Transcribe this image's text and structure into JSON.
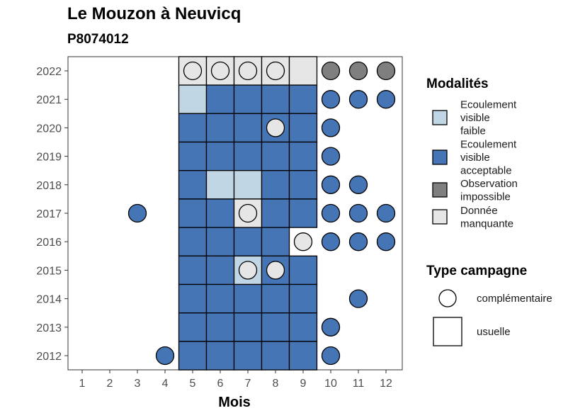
{
  "title": "Le Mouzon à Neuvicq",
  "subtitle": "P8074012",
  "chart_data": {
    "type": "heatmap",
    "xlabel": "Mois",
    "ylabel": "",
    "x_ticks": [
      "1",
      "2",
      "3",
      "4",
      "5",
      "6",
      "7",
      "8",
      "9",
      "10",
      "11",
      "12"
    ],
    "y_ticks": [
      "2012",
      "2013",
      "2014",
      "2015",
      "2016",
      "2017",
      "2018",
      "2019",
      "2020",
      "2021",
      "2022"
    ],
    "grid": false,
    "legend_position": "right",
    "colors": {
      "Ecoulement visible faible": "#c0d6e4",
      "Ecoulement visible acceptable": "#4575b4",
      "Observation impossible": "#7f7f7f",
      "Donnée manquante": "#e6e6e6"
    },
    "legends": [
      {
        "title": "Modalités",
        "items": [
          {
            "lines": [
              "Ecoulement",
              "visible",
              "faible"
            ],
            "color": "#c0d6e4"
          },
          {
            "lines": [
              "Ecoulement",
              "visible",
              "acceptable"
            ],
            "color": "#4575b4"
          },
          {
            "lines": [
              "Observation",
              "impossible"
            ],
            "color": "#7f7f7f"
          },
          {
            "lines": [
              "Donnée",
              "manquante"
            ],
            "color": "#e6e6e6"
          }
        ]
      },
      {
        "title": "Type campagne",
        "items": [
          {
            "label": "complémentaire",
            "shape": "circle"
          },
          {
            "label": "usuelle",
            "shape": "square"
          }
        ]
      }
    ],
    "points": [
      {
        "year": 2022,
        "month": 5,
        "modalite": "Donnée manquante",
        "campagne": "usuelle"
      },
      {
        "year": 2022,
        "month": 6,
        "modalite": "Donnée manquante",
        "campagne": "usuelle"
      },
      {
        "year": 2022,
        "month": 7,
        "modalite": "Donnée manquante",
        "campagne": "usuelle"
      },
      {
        "year": 2022,
        "month": 8,
        "modalite": "Donnée manquante",
        "campagne": "usuelle"
      },
      {
        "year": 2022,
        "month": 9,
        "modalite": "Donnée manquante",
        "campagne": "usuelle"
      },
      {
        "year": 2022,
        "month": 5,
        "modalite": "Donnée manquante",
        "campagne": "complémentaire"
      },
      {
        "year": 2022,
        "month": 6,
        "modalite": "Donnée manquante",
        "campagne": "complémentaire"
      },
      {
        "year": 2022,
        "month": 7,
        "modalite": "Donnée manquante",
        "campagne": "complémentaire"
      },
      {
        "year": 2022,
        "month": 8,
        "modalite": "Donnée manquante",
        "campagne": "complémentaire"
      },
      {
        "year": 2022,
        "month": 10,
        "modalite": "Observation impossible",
        "campagne": "complémentaire"
      },
      {
        "year": 2022,
        "month": 11,
        "modalite": "Observation impossible",
        "campagne": "complémentaire"
      },
      {
        "year": 2022,
        "month": 12,
        "modalite": "Observation impossible",
        "campagne": "complémentaire"
      },
      {
        "year": 2021,
        "month": 5,
        "modalite": "Ecoulement visible faible",
        "campagne": "usuelle"
      },
      {
        "year": 2021,
        "month": 6,
        "modalite": "Ecoulement visible acceptable",
        "campagne": "usuelle"
      },
      {
        "year": 2021,
        "month": 7,
        "modalite": "Ecoulement visible acceptable",
        "campagne": "usuelle"
      },
      {
        "year": 2021,
        "month": 8,
        "modalite": "Ecoulement visible acceptable",
        "campagne": "usuelle"
      },
      {
        "year": 2021,
        "month": 9,
        "modalite": "Ecoulement visible acceptable",
        "campagne": "usuelle"
      },
      {
        "year": 2021,
        "month": 10,
        "modalite": "Ecoulement visible acceptable",
        "campagne": "complémentaire"
      },
      {
        "year": 2021,
        "month": 11,
        "modalite": "Ecoulement visible acceptable",
        "campagne": "complémentaire"
      },
      {
        "year": 2021,
        "month": 12,
        "modalite": "Ecoulement visible acceptable",
        "campagne": "complémentaire"
      },
      {
        "year": 2020,
        "month": 5,
        "modalite": "Ecoulement visible acceptable",
        "campagne": "usuelle"
      },
      {
        "year": 2020,
        "month": 6,
        "modalite": "Ecoulement visible acceptable",
        "campagne": "usuelle"
      },
      {
        "year": 2020,
        "month": 7,
        "modalite": "Ecoulement visible acceptable",
        "campagne": "usuelle"
      },
      {
        "year": 2020,
        "month": 8,
        "modalite": "Ecoulement visible acceptable",
        "campagne": "usuelle"
      },
      {
        "year": 2020,
        "month": 9,
        "modalite": "Ecoulement visible acceptable",
        "campagne": "usuelle"
      },
      {
        "year": 2020,
        "month": 8,
        "modalite": "Donnée manquante",
        "campagne": "complémentaire"
      },
      {
        "year": 2020,
        "month": 10,
        "modalite": "Ecoulement visible acceptable",
        "campagne": "complémentaire"
      },
      {
        "year": 2019,
        "month": 5,
        "modalite": "Ecoulement visible acceptable",
        "campagne": "usuelle"
      },
      {
        "year": 2019,
        "month": 6,
        "modalite": "Ecoulement visible acceptable",
        "campagne": "usuelle"
      },
      {
        "year": 2019,
        "month": 7,
        "modalite": "Ecoulement visible acceptable",
        "campagne": "usuelle"
      },
      {
        "year": 2019,
        "month": 8,
        "modalite": "Ecoulement visible acceptable",
        "campagne": "usuelle"
      },
      {
        "year": 2019,
        "month": 9,
        "modalite": "Ecoulement visible acceptable",
        "campagne": "usuelle"
      },
      {
        "year": 2019,
        "month": 10,
        "modalite": "Ecoulement visible acceptable",
        "campagne": "complémentaire"
      },
      {
        "year": 2018,
        "month": 5,
        "modalite": "Ecoulement visible acceptable",
        "campagne": "usuelle"
      },
      {
        "year": 2018,
        "month": 6,
        "modalite": "Ecoulement visible faible",
        "campagne": "usuelle"
      },
      {
        "year": 2018,
        "month": 7,
        "modalite": "Ecoulement visible faible",
        "campagne": "usuelle"
      },
      {
        "year": 2018,
        "month": 8,
        "modalite": "Ecoulement visible acceptable",
        "campagne": "usuelle"
      },
      {
        "year": 2018,
        "month": 9,
        "modalite": "Ecoulement visible acceptable",
        "campagne": "usuelle"
      },
      {
        "year": 2018,
        "month": 10,
        "modalite": "Ecoulement visible acceptable",
        "campagne": "complémentaire"
      },
      {
        "year": 2018,
        "month": 11,
        "modalite": "Ecoulement visible acceptable",
        "campagne": "complémentaire"
      },
      {
        "year": 2017,
        "month": 3,
        "modalite": "Ecoulement visible acceptable",
        "campagne": "complémentaire"
      },
      {
        "year": 2017,
        "month": 5,
        "modalite": "Ecoulement visible acceptable",
        "campagne": "usuelle"
      },
      {
        "year": 2017,
        "month": 6,
        "modalite": "Ecoulement visible acceptable",
        "campagne": "usuelle"
      },
      {
        "year": 2017,
        "month": 7,
        "modalite": "Donnée manquante",
        "campagne": "usuelle"
      },
      {
        "year": 2017,
        "month": 8,
        "modalite": "Ecoulement visible acceptable",
        "campagne": "usuelle"
      },
      {
        "year": 2017,
        "month": 9,
        "modalite": "Ecoulement visible acceptable",
        "campagne": "usuelle"
      },
      {
        "year": 2017,
        "month": 7,
        "modalite": "Donnée manquante",
        "campagne": "complémentaire"
      },
      {
        "year": 2017,
        "month": 10,
        "modalite": "Ecoulement visible acceptable",
        "campagne": "complémentaire"
      },
      {
        "year": 2017,
        "month": 11,
        "modalite": "Ecoulement visible acceptable",
        "campagne": "complémentaire"
      },
      {
        "year": 2017,
        "month": 12,
        "modalite": "Ecoulement visible acceptable",
        "campagne": "complémentaire"
      },
      {
        "year": 2016,
        "month": 5,
        "modalite": "Ecoulement visible acceptable",
        "campagne": "usuelle"
      },
      {
        "year": 2016,
        "month": 6,
        "modalite": "Ecoulement visible acceptable",
        "campagne": "usuelle"
      },
      {
        "year": 2016,
        "month": 7,
        "modalite": "Ecoulement visible acceptable",
        "campagne": "usuelle"
      },
      {
        "year": 2016,
        "month": 8,
        "modalite": "Ecoulement visible acceptable",
        "campagne": "usuelle"
      },
      {
        "year": 2016,
        "month": 9,
        "modalite": "Donnée manquante",
        "campagne": "complémentaire"
      },
      {
        "year": 2016,
        "month": 10,
        "modalite": "Ecoulement visible acceptable",
        "campagne": "complémentaire"
      },
      {
        "year": 2016,
        "month": 11,
        "modalite": "Ecoulement visible acceptable",
        "campagne": "complémentaire"
      },
      {
        "year": 2016,
        "month": 12,
        "modalite": "Ecoulement visible acceptable",
        "campagne": "complémentaire"
      },
      {
        "year": 2015,
        "month": 5,
        "modalite": "Ecoulement visible acceptable",
        "campagne": "usuelle"
      },
      {
        "year": 2015,
        "month": 6,
        "modalite": "Ecoulement visible acceptable",
        "campagne": "usuelle"
      },
      {
        "year": 2015,
        "month": 7,
        "modalite": "Ecoulement visible faible",
        "campagne": "usuelle"
      },
      {
        "year": 2015,
        "month": 8,
        "modalite": "Ecoulement visible acceptable",
        "campagne": "usuelle"
      },
      {
        "year": 2015,
        "month": 9,
        "modalite": "Ecoulement visible acceptable",
        "campagne": "usuelle"
      },
      {
        "year": 2015,
        "month": 7,
        "modalite": "Donnée manquante",
        "campagne": "complémentaire"
      },
      {
        "year": 2015,
        "month": 8,
        "modalite": "Donnée manquante",
        "campagne": "complémentaire"
      },
      {
        "year": 2014,
        "month": 5,
        "modalite": "Ecoulement visible acceptable",
        "campagne": "usuelle"
      },
      {
        "year": 2014,
        "month": 6,
        "modalite": "Ecoulement visible acceptable",
        "campagne": "usuelle"
      },
      {
        "year": 2014,
        "month": 7,
        "modalite": "Ecoulement visible acceptable",
        "campagne": "usuelle"
      },
      {
        "year": 2014,
        "month": 8,
        "modalite": "Ecoulement visible acceptable",
        "campagne": "usuelle"
      },
      {
        "year": 2014,
        "month": 9,
        "modalite": "Ecoulement visible acceptable",
        "campagne": "usuelle"
      },
      {
        "year": 2014,
        "month": 11,
        "modalite": "Ecoulement visible acceptable",
        "campagne": "complémentaire"
      },
      {
        "year": 2013,
        "month": 5,
        "modalite": "Ecoulement visible acceptable",
        "campagne": "usuelle"
      },
      {
        "year": 2013,
        "month": 6,
        "modalite": "Ecoulement visible acceptable",
        "campagne": "usuelle"
      },
      {
        "year": 2013,
        "month": 7,
        "modalite": "Ecoulement visible acceptable",
        "campagne": "usuelle"
      },
      {
        "year": 2013,
        "month": 8,
        "modalite": "Ecoulement visible acceptable",
        "campagne": "usuelle"
      },
      {
        "year": 2013,
        "month": 9,
        "modalite": "Ecoulement visible acceptable",
        "campagne": "usuelle"
      },
      {
        "year": 2013,
        "month": 10,
        "modalite": "Ecoulement visible acceptable",
        "campagne": "complémentaire"
      },
      {
        "year": 2012,
        "month": 4,
        "modalite": "Ecoulement visible acceptable",
        "campagne": "complémentaire"
      },
      {
        "year": 2012,
        "month": 5,
        "modalite": "Ecoulement visible acceptable",
        "campagne": "usuelle"
      },
      {
        "year": 2012,
        "month": 6,
        "modalite": "Ecoulement visible acceptable",
        "campagne": "usuelle"
      },
      {
        "year": 2012,
        "month": 7,
        "modalite": "Ecoulement visible acceptable",
        "campagne": "usuelle"
      },
      {
        "year": 2012,
        "month": 8,
        "modalite": "Ecoulement visible acceptable",
        "campagne": "usuelle"
      },
      {
        "year": 2012,
        "month": 9,
        "modalite": "Ecoulement visible acceptable",
        "campagne": "usuelle"
      },
      {
        "year": 2012,
        "month": 10,
        "modalite": "Ecoulement visible acceptable",
        "campagne": "complémentaire"
      }
    ]
  }
}
